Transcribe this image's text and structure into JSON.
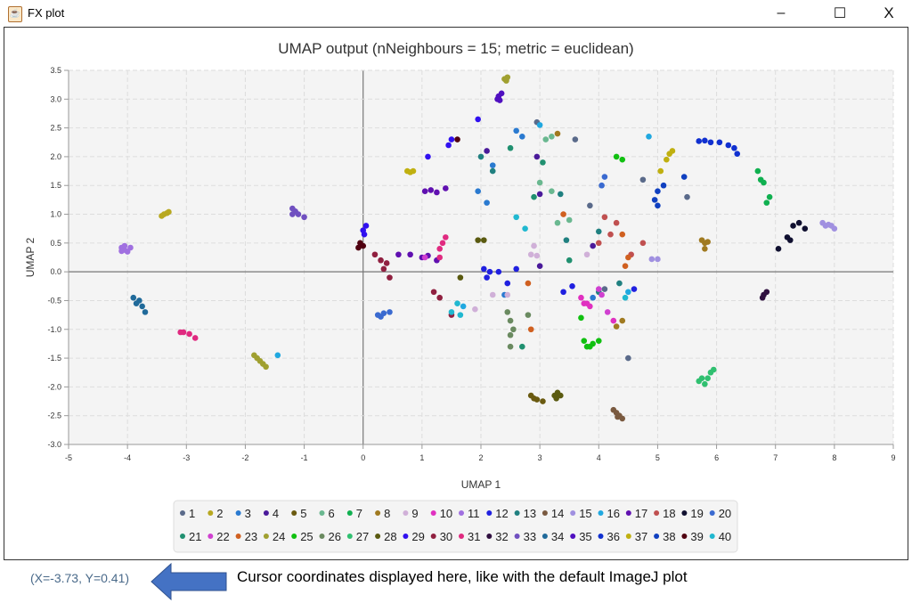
{
  "window": {
    "title": "FX plot",
    "minimize": "–",
    "maximize": "☐",
    "close": "X",
    "icon": "java-icon"
  },
  "status": {
    "cursor_text": "(X=-3.73, Y=0.41)"
  },
  "annotation": {
    "text": "Cursor coordinates displayed here, like with the default ImageJ plot",
    "arrow_color": "#4472c4",
    "arrow": "left-arrow-icon"
  },
  "chart_data": {
    "type": "scatter",
    "title": "UMAP output (nNeighbours = 15; metric = euclidean)",
    "xlabel": "UMAP 1",
    "ylabel": "UMAP 2",
    "xlim": [
      -5,
      9
    ],
    "ylim": [
      -3.0,
      3.5
    ],
    "xticks": [
      "-5",
      "-4",
      "-3",
      "-2",
      "-1",
      "0",
      "1",
      "2",
      "3",
      "4",
      "5",
      "6",
      "7",
      "8",
      "9"
    ],
    "yticks": [
      "-3.0",
      "-2.5",
      "-2.0",
      "-1.5",
      "-1.0",
      "-0.5",
      "0.0",
      "0.5",
      "1.0",
      "1.5",
      "2.0",
      "2.5",
      "3.0",
      "3.5"
    ],
    "grid": true,
    "legend": "bottom",
    "series": [
      {
        "name": "1",
        "color": "#5a6a8a",
        "points": [
          [
            2.95,
            2.6
          ],
          [
            3.85,
            1.15
          ],
          [
            4.75,
            1.6
          ],
          [
            4.1,
            -0.3
          ],
          [
            5.5,
            1.3
          ],
          [
            4.5,
            -1.5
          ],
          [
            3.6,
            2.3
          ]
        ]
      },
      {
        "name": "2",
        "color": "#b8a820",
        "points": [
          [
            -3.38,
            1.0
          ],
          [
            -3.33,
            1.02
          ],
          [
            -3.42,
            0.97
          ],
          [
            -3.3,
            1.04
          ]
        ]
      },
      {
        "name": "3",
        "color": "#2a7ad0",
        "points": [
          [
            2.6,
            2.45
          ],
          [
            2.7,
            2.35
          ],
          [
            2.2,
            1.85
          ],
          [
            1.95,
            1.4
          ],
          [
            2.1,
            1.2
          ],
          [
            2.4,
            -0.4
          ],
          [
            3.9,
            -0.45
          ]
        ]
      },
      {
        "name": "4",
        "color": "#4a1a9a",
        "points": [
          [
            2.95,
            2.0
          ],
          [
            3.0,
            1.35
          ],
          [
            3.9,
            0.45
          ],
          [
            3.0,
            0.1
          ],
          [
            2.1,
            2.1
          ]
        ]
      },
      {
        "name": "5",
        "color": "#6a5a10",
        "points": [
          [
            2.85,
            -2.15
          ],
          [
            2.95,
            -2.22
          ],
          [
            3.05,
            -2.25
          ],
          [
            2.9,
            -2.2
          ]
        ]
      },
      {
        "name": "6",
        "color": "#6ab890",
        "points": [
          [
            3.1,
            2.3
          ],
          [
            3.2,
            2.35
          ],
          [
            3.0,
            1.55
          ],
          [
            3.2,
            1.4
          ],
          [
            3.5,
            0.9
          ],
          [
            3.3,
            0.85
          ]
        ]
      },
      {
        "name": "7",
        "color": "#10b050",
        "points": [
          [
            6.7,
            1.75
          ],
          [
            6.8,
            1.55
          ],
          [
            6.9,
            1.3
          ],
          [
            6.85,
            1.2
          ],
          [
            6.75,
            1.6
          ]
        ]
      },
      {
        "name": "8",
        "color": "#a07a20",
        "points": [
          [
            5.75,
            0.55
          ],
          [
            5.8,
            0.5
          ],
          [
            5.85,
            0.52
          ],
          [
            5.8,
            0.4
          ],
          [
            3.3,
            2.4
          ],
          [
            4.3,
            -0.95
          ],
          [
            4.4,
            -0.85
          ]
        ]
      },
      {
        "name": "9",
        "color": "#d0b0d8",
        "points": [
          [
            2.9,
            0.45
          ],
          [
            2.85,
            0.3
          ],
          [
            2.95,
            0.28
          ],
          [
            2.2,
            -0.4
          ],
          [
            2.45,
            -0.4
          ],
          [
            1.9,
            -0.65
          ],
          [
            3.8,
            0.3
          ]
        ]
      },
      {
        "name": "10",
        "color": "#e030c0",
        "points": [
          [
            3.7,
            -0.45
          ],
          [
            3.8,
            -0.55
          ],
          [
            3.85,
            -0.6
          ],
          [
            3.75,
            -0.55
          ],
          [
            4.25,
            -0.85
          ]
        ]
      },
      {
        "name": "11",
        "color": "#a070e0",
        "points": [
          [
            -4.1,
            0.42
          ],
          [
            -4.05,
            0.38
          ],
          [
            -4.0,
            0.35
          ],
          [
            -3.95,
            0.42
          ],
          [
            -4.1,
            0.36
          ],
          [
            -4.05,
            0.45
          ]
        ]
      },
      {
        "name": "12",
        "color": "#2020e0",
        "points": [
          [
            2.05,
            0.05
          ],
          [
            2.15,
            0.0
          ],
          [
            2.1,
            -0.1
          ],
          [
            2.3,
            0.0
          ],
          [
            2.6,
            0.05
          ],
          [
            2.45,
            -0.2
          ],
          [
            3.55,
            -0.25
          ],
          [
            3.4,
            -0.35
          ],
          [
            4.6,
            -0.3
          ]
        ]
      },
      {
        "name": "13",
        "color": "#208080",
        "points": [
          [
            2.0,
            2.0
          ],
          [
            2.2,
            1.75
          ],
          [
            3.35,
            1.35
          ],
          [
            3.45,
            0.55
          ],
          [
            4.0,
            0.7
          ],
          [
            4.0,
            -0.35
          ],
          [
            4.35,
            -0.2
          ]
        ]
      },
      {
        "name": "14",
        "color": "#7a5a40",
        "points": [
          [
            4.25,
            -2.4
          ],
          [
            4.3,
            -2.45
          ],
          [
            4.35,
            -2.5
          ],
          [
            4.4,
            -2.55
          ],
          [
            4.32,
            -2.52
          ]
        ]
      },
      {
        "name": "15",
        "color": "#a090e0",
        "points": [
          [
            7.8,
            0.85
          ],
          [
            7.85,
            0.8
          ],
          [
            7.9,
            0.82
          ],
          [
            8.0,
            0.75
          ],
          [
            7.95,
            0.8
          ],
          [
            5.0,
            0.22
          ],
          [
            4.9,
            0.22
          ]
        ]
      },
      {
        "name": "16",
        "color": "#20a8e0",
        "points": [
          [
            -1.45,
            -1.45
          ],
          [
            3.0,
            2.55
          ],
          [
            4.85,
            2.35
          ],
          [
            4.5,
            -0.35
          ],
          [
            1.7,
            -0.6
          ]
        ]
      },
      {
        "name": "17",
        "color": "#6010b0",
        "points": [
          [
            1.05,
            1.4
          ],
          [
            1.15,
            1.42
          ],
          [
            1.25,
            1.38
          ],
          [
            1.4,
            1.45
          ],
          [
            0.6,
            0.3
          ],
          [
            0.8,
            0.3
          ],
          [
            1.0,
            0.25
          ],
          [
            1.25,
            0.2
          ],
          [
            1.1,
            0.28
          ]
        ]
      },
      {
        "name": "18",
        "color": "#c05050",
        "points": [
          [
            4.1,
            0.95
          ],
          [
            4.3,
            0.85
          ],
          [
            4.2,
            0.65
          ],
          [
            4.0,
            0.5
          ],
          [
            4.75,
            0.5
          ],
          [
            4.55,
            0.3
          ]
        ]
      },
      {
        "name": "19",
        "color": "#101030",
        "points": [
          [
            7.2,
            0.6
          ],
          [
            7.3,
            0.8
          ],
          [
            7.4,
            0.85
          ],
          [
            7.5,
            0.75
          ],
          [
            7.05,
            0.4
          ],
          [
            7.25,
            0.55
          ]
        ]
      },
      {
        "name": "20",
        "color": "#3a6ad0",
        "points": [
          [
            0.25,
            -0.75
          ],
          [
            0.35,
            -0.72
          ],
          [
            0.45,
            -0.7
          ],
          [
            0.3,
            -0.78
          ],
          [
            4.1,
            1.65
          ],
          [
            4.05,
            1.5
          ]
        ]
      },
      {
        "name": "21",
        "color": "#209070",
        "points": [
          [
            2.5,
            2.15
          ],
          [
            3.05,
            1.9
          ],
          [
            2.9,
            1.3
          ],
          [
            3.5,
            0.2
          ],
          [
            2.7,
            -1.3
          ]
        ]
      },
      {
        "name": "22",
        "color": "#d040d0",
        "points": [
          [
            4.0,
            -0.3
          ],
          [
            4.05,
            -0.4
          ],
          [
            4.15,
            -0.7
          ],
          [
            1.05,
            0.25
          ]
        ]
      },
      {
        "name": "23",
        "color": "#d06020",
        "points": [
          [
            3.4,
            1.0
          ],
          [
            4.4,
            0.65
          ],
          [
            4.5,
            0.25
          ],
          [
            4.45,
            0.1
          ],
          [
            2.8,
            -0.2
          ],
          [
            2.85,
            -1.0
          ]
        ]
      },
      {
        "name": "24",
        "color": "#a0a030",
        "points": [
          [
            2.4,
            3.35
          ],
          [
            2.45,
            3.38
          ],
          [
            2.43,
            3.32
          ],
          [
            -1.85,
            -1.45
          ],
          [
            -1.75,
            -1.55
          ],
          [
            -1.7,
            -1.6
          ],
          [
            -1.65,
            -1.65
          ],
          [
            -1.8,
            -1.5
          ]
        ]
      },
      {
        "name": "25",
        "color": "#10c010",
        "points": [
          [
            3.75,
            -1.2
          ],
          [
            3.8,
            -1.3
          ],
          [
            3.9,
            -1.25
          ],
          [
            4.0,
            -1.2
          ],
          [
            3.85,
            -1.3
          ],
          [
            4.3,
            2.0
          ],
          [
            4.4,
            1.95
          ],
          [
            3.7,
            -0.8
          ]
        ]
      },
      {
        "name": "26",
        "color": "#6a8a60",
        "points": [
          [
            2.45,
            -0.7
          ],
          [
            2.5,
            -0.85
          ],
          [
            2.55,
            -1.0
          ],
          [
            2.5,
            -1.1
          ],
          [
            2.5,
            -1.3
          ],
          [
            2.8,
            -0.75
          ]
        ]
      },
      {
        "name": "27",
        "color": "#30c070",
        "points": [
          [
            5.75,
            -1.85
          ],
          [
            5.8,
            -1.95
          ],
          [
            5.85,
            -1.85
          ],
          [
            5.9,
            -1.75
          ],
          [
            5.95,
            -1.7
          ],
          [
            5.7,
            -1.9
          ]
        ]
      },
      {
        "name": "28",
        "color": "#5a5a10",
        "points": [
          [
            3.25,
            -2.15
          ],
          [
            3.3,
            -2.1
          ],
          [
            3.35,
            -2.15
          ],
          [
            3.28,
            -2.2
          ],
          [
            1.95,
            0.55
          ],
          [
            2.05,
            0.55
          ],
          [
            1.65,
            -0.1
          ]
        ]
      },
      {
        "name": "29",
        "color": "#3010f0",
        "points": [
          [
            0.05,
            0.8
          ],
          [
            0.0,
            0.72
          ],
          [
            0.02,
            0.65
          ],
          [
            1.1,
            2.0
          ],
          [
            1.45,
            2.2
          ],
          [
            1.5,
            2.3
          ],
          [
            1.95,
            2.65
          ]
        ]
      },
      {
        "name": "30",
        "color": "#902040",
        "points": [
          [
            0.2,
            0.3
          ],
          [
            0.3,
            0.2
          ],
          [
            0.4,
            0.15
          ],
          [
            0.35,
            0.05
          ],
          [
            0.45,
            -0.1
          ],
          [
            1.2,
            -0.35
          ],
          [
            1.3,
            -0.45
          ],
          [
            1.5,
            -0.75
          ]
        ]
      },
      {
        "name": "31",
        "color": "#e02a80",
        "points": [
          [
            -3.05,
            -1.05
          ],
          [
            -2.95,
            -1.08
          ],
          [
            -3.1,
            -1.05
          ],
          [
            -2.85,
            -1.15
          ],
          [
            1.35,
            0.5
          ],
          [
            1.4,
            0.6
          ],
          [
            1.3,
            0.4
          ],
          [
            1.3,
            0.25
          ]
        ]
      },
      {
        "name": "32",
        "color": "#301040",
        "points": [
          [
            6.8,
            -0.4
          ],
          [
            6.85,
            -0.35
          ],
          [
            6.78,
            -0.45
          ]
        ]
      },
      {
        "name": "33",
        "color": "#7050c0",
        "points": [
          [
            -1.2,
            1.1
          ],
          [
            -1.15,
            1.05
          ],
          [
            -1.1,
            1.0
          ],
          [
            -1.0,
            0.95
          ],
          [
            -1.2,
            1.0
          ]
        ]
      },
      {
        "name": "34",
        "color": "#206a9a",
        "points": [
          [
            -3.9,
            -0.45
          ],
          [
            -3.8,
            -0.5
          ],
          [
            -3.75,
            -0.6
          ],
          [
            -3.7,
            -0.7
          ],
          [
            -3.85,
            -0.55
          ]
        ]
      },
      {
        "name": "35",
        "color": "#5010c0",
        "points": [
          [
            2.3,
            3.05
          ],
          [
            2.35,
            3.1
          ],
          [
            2.32,
            2.98
          ],
          [
            2.28,
            3.0
          ]
        ]
      },
      {
        "name": "36",
        "color": "#1030d0",
        "points": [
          [
            5.7,
            2.27
          ],
          [
            5.8,
            2.28
          ],
          [
            5.9,
            2.25
          ],
          [
            6.05,
            2.25
          ],
          [
            6.2,
            2.2
          ],
          [
            6.3,
            2.15
          ],
          [
            6.35,
            2.05
          ]
        ]
      },
      {
        "name": "37",
        "color": "#c0b010",
        "points": [
          [
            0.75,
            1.75
          ],
          [
            0.8,
            1.73
          ],
          [
            0.85,
            1.75
          ],
          [
            5.25,
            2.1
          ],
          [
            5.2,
            2.05
          ],
          [
            5.15,
            1.95
          ],
          [
            5.05,
            1.75
          ]
        ]
      },
      {
        "name": "38",
        "color": "#1040c0",
        "points": [
          [
            4.95,
            1.25
          ],
          [
            5.0,
            1.4
          ],
          [
            5.1,
            1.5
          ],
          [
            5.45,
            1.65
          ],
          [
            5.0,
            1.15
          ]
        ]
      },
      {
        "name": "39",
        "color": "#500010",
        "points": [
          [
            -0.05,
            0.5
          ],
          [
            0.0,
            0.45
          ],
          [
            -0.08,
            0.42
          ],
          [
            1.6,
            2.3
          ]
        ]
      },
      {
        "name": "40",
        "color": "#20b8d0",
        "points": [
          [
            1.6,
            -0.55
          ],
          [
            1.65,
            -0.75
          ],
          [
            1.5,
            -0.7
          ],
          [
            2.6,
            0.95
          ],
          [
            2.75,
            0.75
          ],
          [
            4.45,
            -0.45
          ]
        ]
      }
    ]
  }
}
